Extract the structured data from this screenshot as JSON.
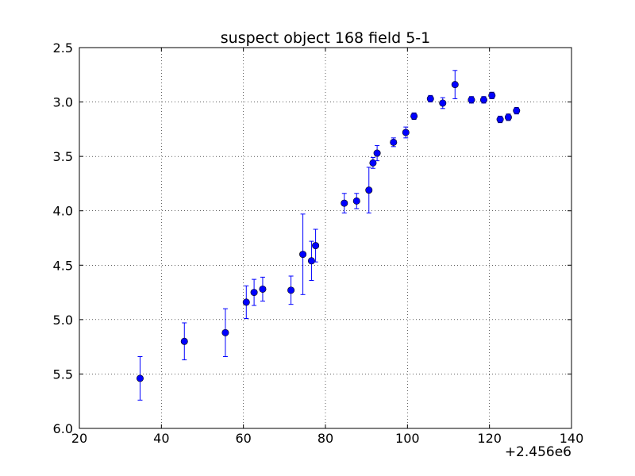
{
  "chart_data": {
    "type": "scatter",
    "title": "suspect object 168 field 5-1",
    "xlabel": "",
    "ylabel": "",
    "xlim": [
      20,
      140
    ],
    "ylim": [
      2.5,
      6.0
    ],
    "y_inverted": true,
    "x_offset_label": "+2.456e6",
    "x_ticks": [
      20,
      40,
      60,
      80,
      100,
      120,
      140
    ],
    "x_tick_labels": [
      "20",
      "40",
      "60",
      "80",
      "100",
      "120",
      "140"
    ],
    "y_ticks": [
      2.5,
      3.0,
      3.5,
      4.0,
      4.5,
      5.0,
      5.5,
      6.0
    ],
    "y_tick_labels": [
      "2.5",
      "3.0",
      "3.5",
      "4.0",
      "4.5",
      "5.0",
      "5.5",
      "6.0"
    ],
    "grid": true,
    "grid_style": "dotted",
    "legend": "none",
    "series": [
      {
        "marker_color": "#0000ff",
        "errorbar_color": "#0000ff",
        "points": [
          {
            "x": 34.8,
            "y": 5.54,
            "yerr": 0.2
          },
          {
            "x": 45.6,
            "y": 5.2,
            "yerr": 0.17
          },
          {
            "x": 55.6,
            "y": 5.12,
            "yerr": 0.22
          },
          {
            "x": 60.7,
            "y": 4.84,
            "yerr": 0.15
          },
          {
            "x": 62.6,
            "y": 4.75,
            "yerr": 0.12
          },
          {
            "x": 64.7,
            "y": 4.72,
            "yerr": 0.11
          },
          {
            "x": 71.6,
            "y": 4.73,
            "yerr": 0.13
          },
          {
            "x": 74.5,
            "y": 4.4,
            "yerr": 0.37
          },
          {
            "x": 76.6,
            "y": 4.46,
            "yerr": 0.18
          },
          {
            "x": 77.6,
            "y": 4.32,
            "yerr": 0.15
          },
          {
            "x": 84.6,
            "y": 3.93,
            "yerr": 0.09
          },
          {
            "x": 87.6,
            "y": 3.91,
            "yerr": 0.07
          },
          {
            "x": 90.6,
            "y": 3.81,
            "yerr": 0.21
          },
          {
            "x": 91.6,
            "y": 3.56,
            "yerr": 0.05
          },
          {
            "x": 92.6,
            "y": 3.47,
            "yerr": 0.07
          },
          {
            "x": 96.6,
            "y": 3.37,
            "yerr": 0.04
          },
          {
            "x": 99.6,
            "y": 3.28,
            "yerr": 0.05
          },
          {
            "x": 101.6,
            "y": 3.13,
            "yerr": 0.03
          },
          {
            "x": 105.6,
            "y": 2.97,
            "yerr": 0.03
          },
          {
            "x": 108.6,
            "y": 3.01,
            "yerr": 0.05
          },
          {
            "x": 111.6,
            "y": 2.84,
            "yerr": 0.13
          },
          {
            "x": 115.6,
            "y": 2.98,
            "yerr": 0.03
          },
          {
            "x": 118.6,
            "y": 2.98,
            "yerr": 0.03
          },
          {
            "x": 120.6,
            "y": 2.94,
            "yerr": 0.03
          },
          {
            "x": 122.6,
            "y": 3.16,
            "yerr": 0.03
          },
          {
            "x": 124.6,
            "y": 3.14,
            "yerr": 0.03
          },
          {
            "x": 126.6,
            "y": 3.08,
            "yerr": 0.03
          }
        ]
      }
    ]
  }
}
